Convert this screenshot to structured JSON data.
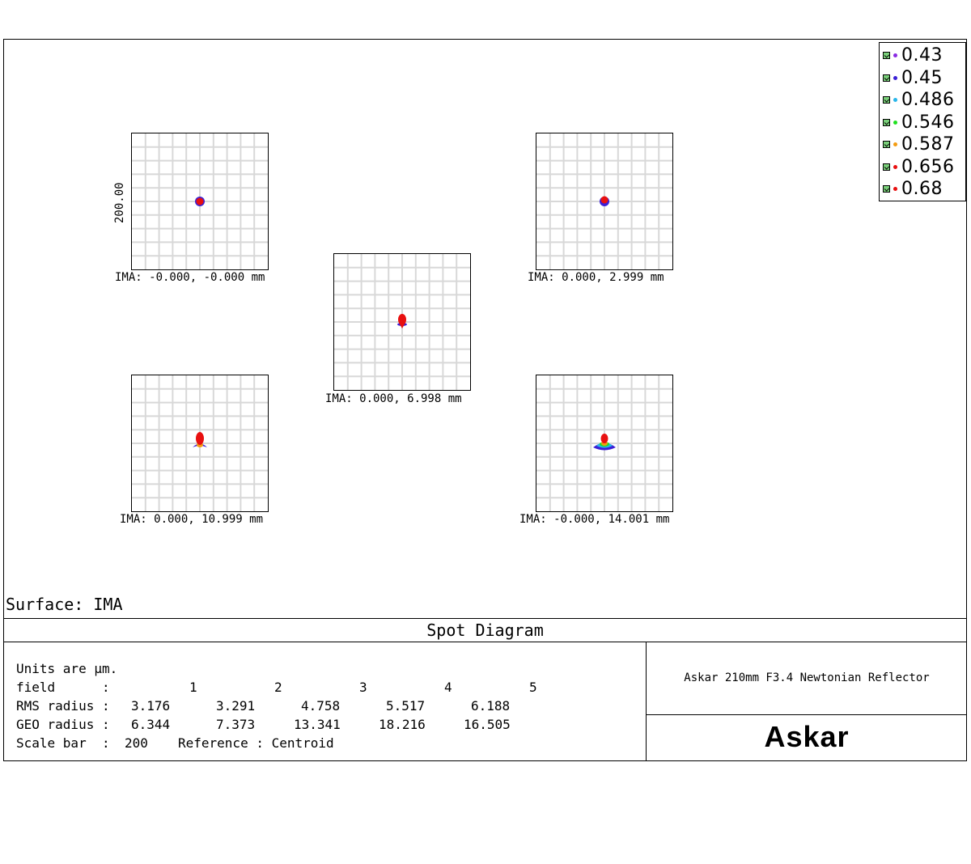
{
  "chart_data": {
    "type": "scatter",
    "title": "Spot Diagram",
    "surface_label": "Surface: IMA",
    "scale_bar_label": "200.00",
    "wavelengths": [
      {
        "value": "0.43",
        "color": "#8a2be2"
      },
      {
        "value": "0.45",
        "color": "#3a1fd6"
      },
      {
        "value": "0.486",
        "color": "#29b6ea"
      },
      {
        "value": "0.546",
        "color": "#20e020"
      },
      {
        "value": "0.587",
        "color": "#f39c12"
      },
      {
        "value": "0.656",
        "color": "#e81010"
      },
      {
        "value": "0.68",
        "color": "#e81010"
      }
    ],
    "fields": [
      {
        "label": "IMA: -0.000, -0.000 mm",
        "spot_shape": "round"
      },
      {
        "label": "IMA: 0.000, 2.999 mm",
        "spot_shape": "round"
      },
      {
        "label": "IMA: 0.000, 6.998 mm",
        "spot_shape": "drop"
      },
      {
        "label": "IMA: 0.000, 10.999 mm",
        "spot_shape": "comet"
      },
      {
        "label": "IMA: -0.000, 14.001 mm",
        "spot_shape": "fan"
      }
    ]
  },
  "info": {
    "units": "Units are µm.",
    "field_label": "field      :",
    "field_values": [
      "1",
      "2",
      "3",
      "4",
      "5"
    ],
    "rms_label": "RMS radius :",
    "rms_values": [
      "3.176",
      "3.291",
      "4.758",
      "5.517",
      "6.188"
    ],
    "geo_label": "GEO radius :",
    "geo_values": [
      "6.344",
      "7.373",
      "13.341",
      "18.216",
      "16.505"
    ],
    "scale_label": "Scale bar  :",
    "scale_value": "200",
    "reference": "Reference : Centroid"
  },
  "system_title": "Askar 210mm F3.4 Newtonian Reflector",
  "brand": "Askar"
}
